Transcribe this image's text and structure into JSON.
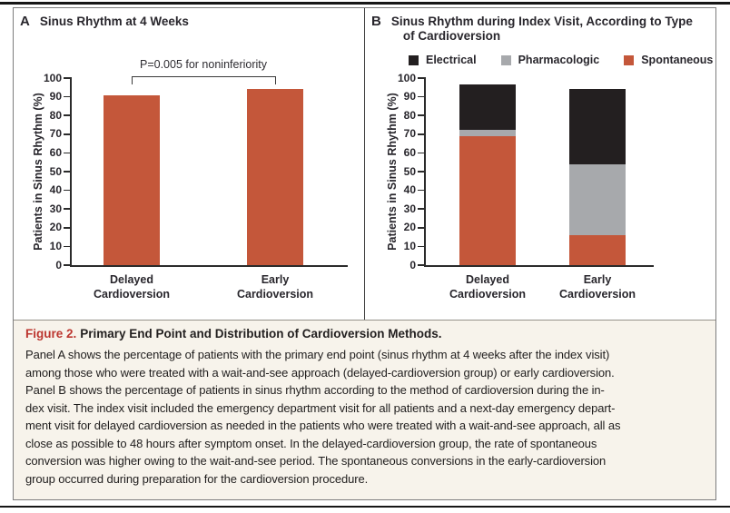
{
  "figure": {
    "label": "Figure 2.",
    "label_color": "#BC362F",
    "title": "Primary End Point and Distribution of Cardioversion Methods.",
    "caption_background": "#F7F3EB",
    "caption_lines": [
      "Panel A shows the percentage of patients with the primary end point (sinus rhythm at 4 weeks after the index visit)",
      "among those who were treated with a wait-and-see approach (delayed-cardioversion group) or early cardioversion.",
      "Panel B shows the percentage of patients in sinus rhythm according to the method of cardioversion during the in-",
      "dex visit. The index visit included the emergency department visit for all patients and a next-day emergency depart-",
      "ment visit for delayed cardioversion as needed in the patients who were treated with a wait-and-see approach, all as",
      "close as possible to 48 hours after symptom onset. In the delayed-cardioversion group, the rate of spontaneous",
      "conversion was higher owing to the wait-and-see period. The spontaneous conversions in the early-cardioversion",
      "group occurred during preparation for the cardioversion procedure."
    ]
  },
  "chart_data": [
    {
      "id": "panel_a",
      "type": "bar",
      "panel_letter": "A",
      "title": "Sinus Rhythm at 4 Weeks",
      "categories": [
        [
          "Delayed",
          "Cardioversion"
        ],
        [
          "Early",
          "Cardioversion"
        ]
      ],
      "values": [
        91,
        94
      ],
      "bar_color": "#C4573A",
      "ylabel": "Patients in Sinus Rhythm (%)",
      "ylim": [
        0,
        100
      ],
      "yticks": [
        0,
        10,
        20,
        30,
        40,
        50,
        60,
        70,
        80,
        90,
        100
      ],
      "grid": false,
      "annotation": "P=0.005 for noninferiority"
    },
    {
      "id": "panel_b",
      "type": "stacked_bar",
      "panel_letter": "B",
      "title_lines": [
        "Sinus Rhythm during Index Visit, According to Type",
        "of Cardioversion"
      ],
      "categories": [
        [
          "Delayed",
          "Cardioversion"
        ],
        [
          "Early",
          "Cardioversion"
        ]
      ],
      "series": [
        {
          "name": "Spontaneous",
          "color": "#C4573A",
          "values": [
            69,
            16
          ]
        },
        {
          "name": "Pharmacologic",
          "color": "#A7A9AC",
          "values": [
            3.5,
            38
          ]
        },
        {
          "name": "Electrical",
          "color": "#231F20",
          "values": [
            24,
            40
          ]
        }
      ],
      "stack_totals": [
        96.5,
        94
      ],
      "legend": [
        {
          "label": "Electrical",
          "color": "#231F20"
        },
        {
          "label": "Pharmacologic",
          "color": "#A7A9AC"
        },
        {
          "label": "Spontaneous",
          "color": "#C4573A"
        }
      ],
      "legend_position": "top",
      "ylabel": "Patients in Sinus Rhythm (%)",
      "ylim": [
        0,
        100
      ],
      "yticks": [
        0,
        10,
        20,
        30,
        40,
        50,
        60,
        70,
        80,
        90,
        100
      ],
      "grid": false
    }
  ]
}
